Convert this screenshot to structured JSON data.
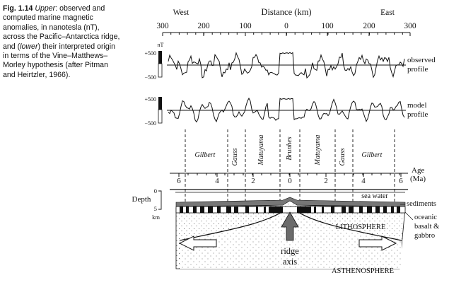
{
  "caption": {
    "fig_label": "Fig. 1.14",
    "part1_em": "Upper",
    "part1": ": observed and computed marine magnetic anomalies, in nanotesla (nT), across the Pacific–Antarctica ridge, and (",
    "part2_em": "lower",
    "part2": ") their interpreted origin in terms of the Vine–Matthews–Morley hypothesis (after Pitman and Heirtzler, 1966)."
  },
  "top_axis": {
    "west": "West",
    "east": "East",
    "title": "Distance (km)",
    "ticks": [
      "300",
      "200",
      "100",
      "0",
      "100",
      "200",
      "300"
    ]
  },
  "profiles": {
    "unit": "nT",
    "plus": "+500",
    "minus": "−500",
    "observed_label": [
      "observed",
      "profile"
    ],
    "model_label": [
      "model",
      "profile"
    ]
  },
  "epochs": [
    "Gilbert",
    "Gauss",
    "Matuyama",
    "Brunhes",
    "Matuyama",
    "Gauss",
    "Gilbert"
  ],
  "age_axis": {
    "title": [
      "Age",
      "(Ma)"
    ],
    "ticks": [
      "6",
      "4",
      "2",
      "0",
      "2",
      "4",
      "6"
    ]
  },
  "cross_section": {
    "depth_label": "Depth",
    "depth_ticks": [
      "0",
      "5"
    ],
    "depth_unit": "km",
    "sea_water": "sea water",
    "sediments": "sediments",
    "basalt": [
      "oceanic",
      "basalt &",
      "gabbro"
    ],
    "lithosphere": "LITHOSPHERE",
    "asthenosphere": "ASTHENOSPHERE",
    "ridge": [
      "ridge",
      "axis"
    ]
  }
}
